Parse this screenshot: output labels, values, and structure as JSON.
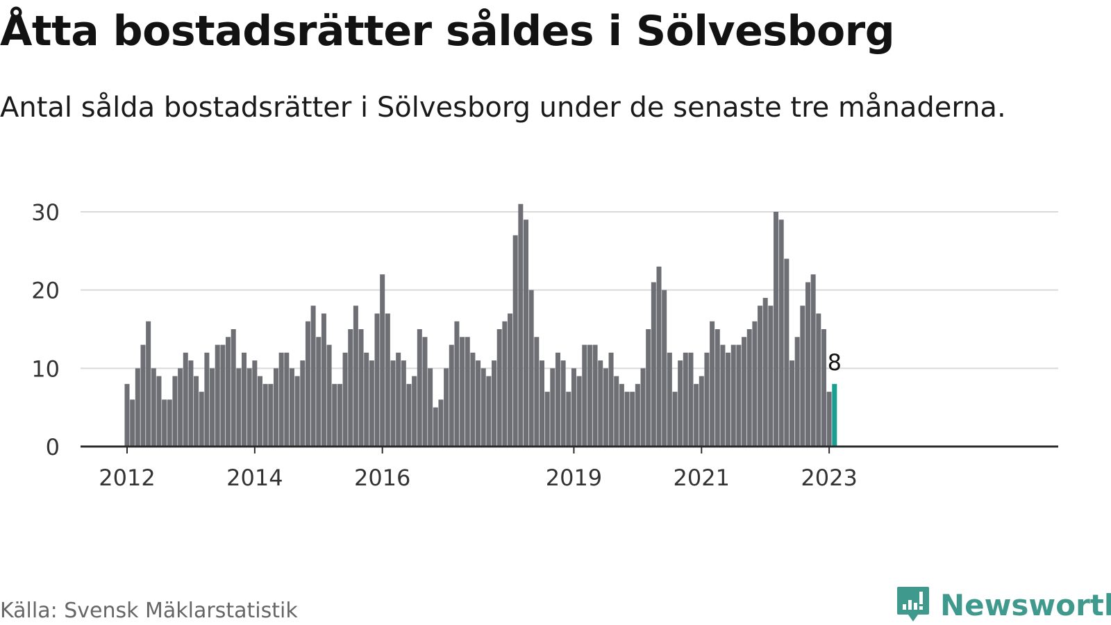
{
  "title": "Åtta bostadsrätter såldes i Sölvesborg",
  "subtitle": "Antal sålda bostadsrätter i Sölvesborg under de senaste tre månaderna.",
  "source": "Källa: Svensk Mäklarstatistik",
  "brand": {
    "name": "Newsworthy",
    "icon": "newsworthy-logo-icon"
  },
  "colors": {
    "bar": "#6e6e75",
    "highlight": "#1a9e92",
    "grid": "#d9d9d9",
    "axis": "#2b2b2b",
    "brand": "#3f9a8d"
  },
  "chart_data": {
    "type": "bar",
    "start": "2012-01",
    "frequency": "monthly",
    "values": [
      8,
      6,
      10,
      13,
      16,
      10,
      9,
      6,
      6,
      9,
      10,
      12,
      11,
      9,
      7,
      12,
      10,
      13,
      13,
      14,
      15,
      10,
      12,
      10,
      11,
      9,
      8,
      8,
      10,
      12,
      12,
      10,
      9,
      11,
      16,
      18,
      14,
      17,
      13,
      8,
      8,
      12,
      15,
      18,
      15,
      12,
      11,
      17,
      22,
      17,
      11,
      12,
      11,
      8,
      9,
      15,
      14,
      10,
      5,
      6,
      10,
      13,
      16,
      14,
      14,
      12,
      11,
      10,
      9,
      11,
      15,
      16,
      17,
      27,
      31,
      29,
      20,
      14,
      11,
      7,
      10,
      12,
      11,
      7,
      10,
      9,
      13,
      13,
      13,
      11,
      10,
      12,
      9,
      8,
      7,
      7,
      8,
      10,
      15,
      21,
      23,
      20,
      12,
      7,
      11,
      12,
      12,
      8,
      9,
      12,
      16,
      15,
      13,
      12,
      13,
      13,
      14,
      15,
      16,
      18,
      19,
      18,
      30,
      29,
      24,
      11,
      14,
      18,
      21,
      22,
      17,
      15,
      7,
      8
    ],
    "highlight_last": true,
    "highlight_label": "8",
    "x_ticks": [
      "2012",
      "2014",
      "2016",
      "2019",
      "2021",
      "2023"
    ],
    "y_ticks": [
      "0",
      "10",
      "20",
      "30"
    ],
    "ylim": [
      0,
      30
    ],
    "grid": true
  }
}
